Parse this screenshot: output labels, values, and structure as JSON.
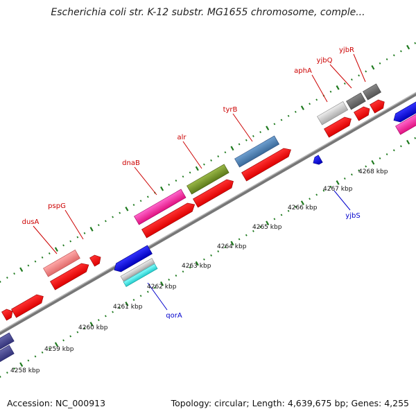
{
  "map": {
    "title": "Escherichia coli str. K-12 substr. MG1655 chromosome, comple...",
    "footer_left": "Accession: NC_000913",
    "footer_right": "Topology: circular; Length: 4,639,675 bp; Genes: 4,255"
  },
  "colors": {
    "forward_label": "#cc0000",
    "reverse_label": "#0000cc",
    "tick": "#1e7a1e",
    "backbone": "#888888"
  },
  "kbp_labels": [
    "4258 kbp",
    "4259 kbp",
    "4260 kbp",
    "4261 kbp",
    "4262 kbp",
    "4263 kbp",
    "4264 kbp",
    "4265 kbp",
    "4266 kbp",
    "4267 kbp",
    "4268 kbp"
  ],
  "forward_labels": [
    "dusA",
    "pspG",
    "dnaB",
    "alr",
    "tyrB",
    "aphA",
    "yjbQ",
    "yjbR"
  ],
  "reverse_labels": [
    "qorA",
    "yjbS"
  ]
}
